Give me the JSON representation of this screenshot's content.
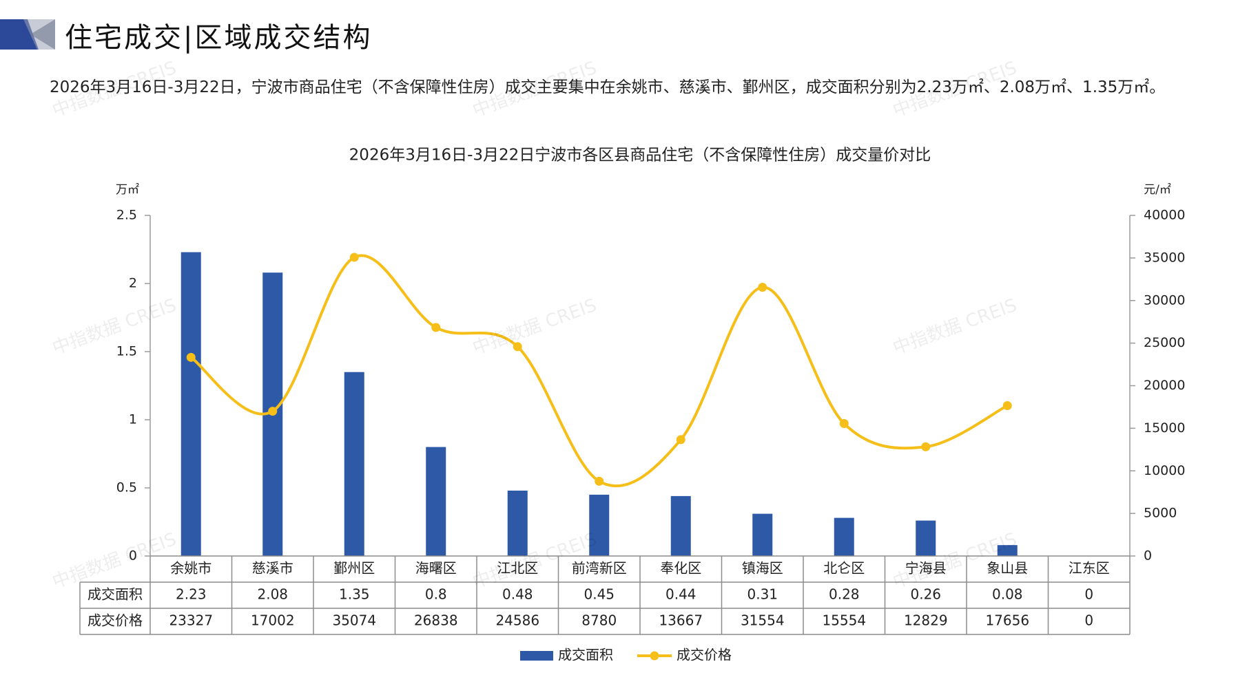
{
  "header": {
    "title": "住宅成交|区域成交结构"
  },
  "summary_text": "2026年3月16日-3月22日，宁波市商品住宅（不含保障性住房）成交主要集中在余姚市、慈溪市、鄞州区，成交面积分别为2.23万㎡、2.08万㎡、1.35万㎡。",
  "watermark": "中指数据 CREIS",
  "colors": {
    "bar": "#2E59A7",
    "line": "#F5BE18",
    "logo_dark": "#2B4899",
    "logo_gray": "#9AA2B4",
    "grid": "#9a9a9a"
  },
  "chart_data": {
    "type": "bar+line",
    "title": "2026年3月16日-3月22日宁波市各区县商品住宅（不含保障性住房）成交量价对比",
    "y_left_unit": "万㎡",
    "y_right_unit": "元/㎡",
    "y_left_range": [
      0,
      2.5
    ],
    "y_left_ticks": [
      "0",
      "0.5",
      "1",
      "1.5",
      "2",
      "2.5"
    ],
    "y_right_range": [
      0,
      40000
    ],
    "y_right_ticks": [
      "0",
      "5000",
      "10000",
      "15000",
      "20000",
      "25000",
      "30000",
      "35000",
      "40000"
    ],
    "categories": [
      "余姚市",
      "慈溪市",
      "鄞州区",
      "海曙区",
      "江北区",
      "前湾新区",
      "奉化区",
      "镇海区",
      "北仑区",
      "宁海县",
      "象山县",
      "江东区"
    ],
    "series": [
      {
        "name": "成交面积",
        "type": "bar",
        "axis": "left",
        "values": [
          2.23,
          2.08,
          1.35,
          0.8,
          0.48,
          0.45,
          0.44,
          0.31,
          0.28,
          0.26,
          0.08,
          0
        ],
        "labels": [
          "2.23",
          "2.08",
          "1.35",
          "0.8",
          "0.48",
          "0.45",
          "0.44",
          "0.31",
          "0.28",
          "0.26",
          "0.08",
          "0"
        ]
      },
      {
        "name": "成交价格",
        "type": "line",
        "axis": "right",
        "values": [
          23327,
          17002,
          35074,
          26838,
          24586,
          8780,
          13667,
          31554,
          15554,
          12829,
          17656,
          0
        ],
        "labels": [
          "23327",
          "17002",
          "35074",
          "26838",
          "24586",
          "8780",
          "13667",
          "31554",
          "15554",
          "12829",
          "17656",
          "0"
        ]
      }
    ],
    "legend_position": "bottom"
  }
}
